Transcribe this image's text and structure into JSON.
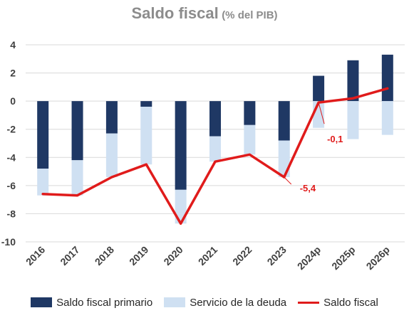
{
  "chart_data": {
    "type": "bar",
    "title": "Saldo fiscal",
    "subtitle": "(% del PIB)",
    "categories": [
      "2016",
      "2017",
      "2018",
      "2019",
      "2020",
      "2021",
      "2022",
      "2023",
      "2024p",
      "2025p",
      "2026p"
    ],
    "series": [
      {
        "name": "Saldo fiscal primario",
        "kind": "bar",
        "color": "#1f3864",
        "values": [
          -4.8,
          -4.2,
          -2.3,
          -0.4,
          -6.3,
          -2.5,
          -1.7,
          -2.8,
          1.8,
          2.9,
          3.3
        ]
      },
      {
        "name": "Servicio de la deuda",
        "kind": "bar",
        "color": "#cfe0f2",
        "values": [
          -1.9,
          -2.5,
          -3.1,
          -4.1,
          -2.4,
          -1.8,
          -2.1,
          -2.6,
          -1.9,
          -2.7,
          -2.4
        ]
      },
      {
        "name": "Saldo fiscal",
        "kind": "line",
        "color": "#e01b1b",
        "values": [
          -6.6,
          -6.7,
          -5.4,
          -4.5,
          -8.7,
          -4.3,
          -3.8,
          -5.4,
          -0.1,
          0.2,
          0.9
        ]
      }
    ],
    "annotations": [
      {
        "category": "2023",
        "text": "-5,4"
      },
      {
        "category": "2024p",
        "text": "-0,1"
      }
    ],
    "ylim": [
      -10,
      4
    ],
    "yticks": [
      4,
      2,
      0,
      -2,
      -4,
      -6,
      -8,
      -10
    ],
    "grid": true,
    "legend_position": "bottom"
  }
}
